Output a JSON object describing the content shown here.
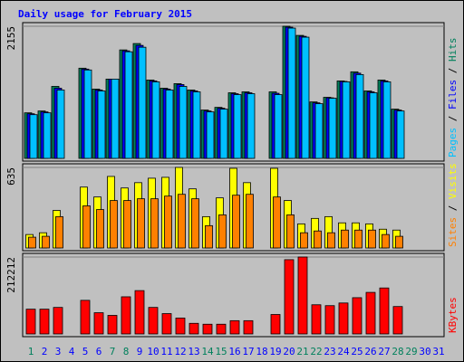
{
  "chart_data": {
    "type": "bar",
    "title": "Daily usage for February 2015",
    "categories": [
      "1",
      "2",
      "3",
      "4",
      "5",
      "6",
      "7",
      "8",
      "9",
      "10",
      "11",
      "12",
      "13",
      "14",
      "15",
      "16",
      "17",
      "18",
      "19",
      "20",
      "21",
      "22",
      "23",
      "24",
      "25",
      "26",
      "27",
      "28",
      "29",
      "30",
      "31"
    ],
    "category_colors": [
      "#00805c",
      "#0000ff",
      "#0000ff",
      "#0000ff",
      "#0000ff",
      "#0000ff",
      "#00805c",
      "#00805c",
      "#0000ff",
      "#0000ff",
      "#0000ff",
      "#0000ff",
      "#0000ff",
      "#00805c",
      "#00805c",
      "#0000ff",
      "#0000ff",
      "#0000ff",
      "#0000ff",
      "#0000ff",
      "#00805c",
      "#00805c",
      "#0000ff",
      "#0000ff",
      "#0000ff",
      "#0000ff",
      "#0000ff",
      "#00805c",
      "#00805c",
      "#0000ff",
      "#0000ff"
    ],
    "legend_separator": " / ",
    "panels": [
      {
        "ylim": [
          0,
          2155
        ],
        "yticks": [
          2155
        ],
        "series": [
          {
            "name": "Hits",
            "color": "#00805c",
            "values": [
              743,
              773,
              1174,
              0,
              1471,
              1130,
              1293,
              1769,
              1873,
              1278,
              1144,
              1219,
              1115,
              788,
              832,
              1070,
              1085,
              0,
              1085,
              2155,
              2006,
              921,
              996,
              1263,
              1412,
              1100,
              1278,
              803,
              0,
              0,
              0
            ]
          },
          {
            "name": "Files",
            "color": "#0000ff",
            "values": [
              728,
              758,
              1144,
              0,
              1456,
              1115,
              1293,
              1754,
              1843,
              1263,
              1130,
              1204,
              1100,
              773,
              818,
              1055,
              1070,
              0,
              1062,
              2140,
              1991,
              906,
              988,
              1255,
              1390,
              1085,
              1263,
              788,
              0,
              0,
              0
            ]
          },
          {
            "name": "Pages",
            "color": "#00c0ff",
            "values": [
              713,
              743,
              1115,
              0,
              1442,
              1100,
              1293,
              1739,
              1813,
              1248,
              1115,
              1174,
              1085,
              758,
              803,
              1040,
              1055,
              0,
              1040,
              2125,
              1977,
              892,
              981,
              1248,
              1367,
              1070,
              1248,
              773,
              0,
              0,
              0
            ]
          }
        ]
      },
      {
        "ylim": [
          0,
          635
        ],
        "yticks": [
          635
        ],
        "series": [
          {
            "name": "Visits",
            "color": "#ffff00",
            "values": [
              106,
              120,
              296,
              0,
              480,
              402,
              564,
              473,
              515,
              550,
              557,
              635,
              466,
              247,
              395,
              628,
              515,
              0,
              628,
              374,
              190,
              233,
              247,
              198,
              198,
              190,
              148,
              141,
              0,
              0,
              0
            ]
          },
          {
            "name": "Sites",
            "color": "#ff8000",
            "values": [
              85,
              92,
              247,
              0,
              332,
              303,
              374,
              374,
              388,
              388,
              409,
              423,
              388,
              176,
              261,
              416,
              423,
              0,
              402,
              261,
              120,
              134,
              120,
              141,
              141,
              141,
              106,
              92,
              0,
              0,
              0
            ]
          }
        ]
      },
      {
        "ylim": [
          0,
          212212
        ],
        "yticks": [
          212212
        ],
        "series": [
          {
            "name": "KBytes",
            "color": "#ff0000",
            "values": [
              68300,
              68300,
              73177,
              0,
              92690,
              58540,
              51224,
              102447,
              119522,
              73177,
              56102,
              43906,
              29270,
              26832,
              26832,
              36589,
              36589,
              0,
              53663,
              204894,
              212212,
              80495,
              78056,
              85374,
              100009,
              114644,
              126840,
              75617,
              0,
              0,
              0
            ]
          }
        ]
      }
    ]
  }
}
